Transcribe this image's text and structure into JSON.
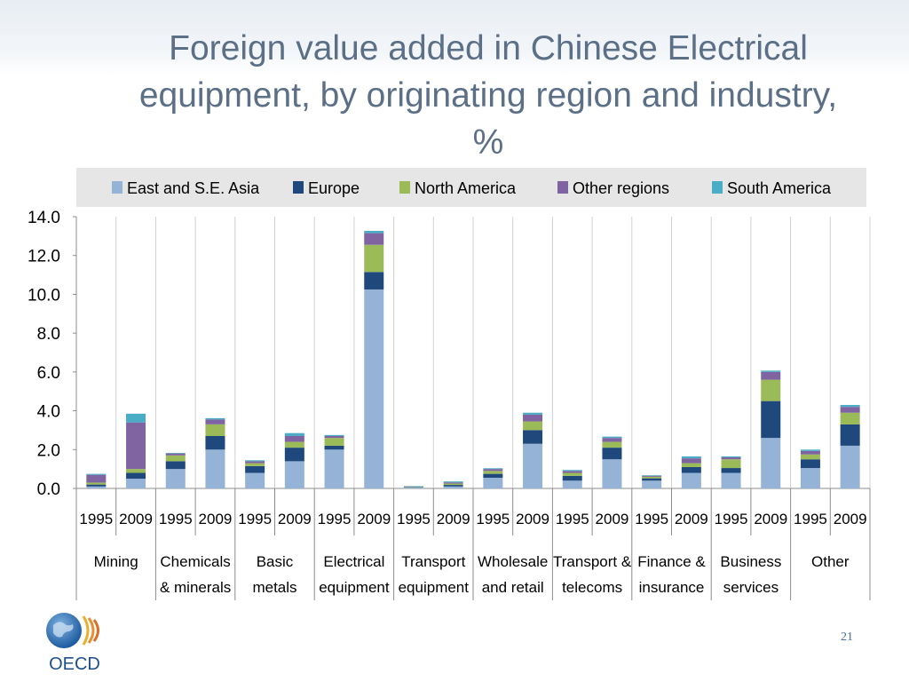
{
  "slide": {
    "title_lines": [
      "Foreign value added in Chinese Electrical",
      "equipment, by originating region and industry,",
      "%"
    ],
    "page_number": "21",
    "logo_text": "OECD"
  },
  "colors": {
    "East and S.E. Asia": "#95b3d7",
    "Europe": "#1f497d",
    "North America": "#9bbb59",
    "Other regions": "#8064a2",
    "South America": "#4bacc6"
  },
  "chart_data": {
    "type": "bar",
    "stacked": true,
    "title": "Foreign value added in Chinese Electrical equipment, by originating region and industry, %",
    "ylim": [
      0,
      14
    ],
    "yticks": [
      "0.0",
      "2.0",
      "4.0",
      "6.0",
      "8.0",
      "10.0",
      "12.0",
      "14.0"
    ],
    "grid": "vertical",
    "legend_position": "top",
    "industries": [
      {
        "lines": [
          "Mining"
        ]
      },
      {
        "lines": [
          "Chemicals",
          "& minerals"
        ]
      },
      {
        "lines": [
          "Basic",
          "metals"
        ]
      },
      {
        "lines": [
          "Electrical",
          "equipment"
        ]
      },
      {
        "lines": [
          "Transport",
          "equipment"
        ]
      },
      {
        "lines": [
          "Wholesale",
          "and retail"
        ]
      },
      {
        "lines": [
          "Transport &",
          "telecoms"
        ]
      },
      {
        "lines": [
          "Finance &",
          "insurance"
        ]
      },
      {
        "lines": [
          "Business",
          "services"
        ]
      },
      {
        "lines": [
          "Other"
        ]
      }
    ],
    "years": [
      "1995",
      "2009"
    ],
    "series": [
      {
        "name": "East and S.E. Asia",
        "values": [
          0.1,
          0.5,
          1.0,
          2.0,
          0.8,
          1.4,
          2.0,
          10.25,
          0.05,
          0.1,
          0.55,
          2.3,
          0.4,
          1.5,
          0.4,
          0.8,
          0.8,
          2.6,
          1.05,
          2.2
        ]
      },
      {
        "name": "Europe",
        "values": [
          0.1,
          0.3,
          0.4,
          0.7,
          0.35,
          0.7,
          0.2,
          0.9,
          0.02,
          0.08,
          0.2,
          0.7,
          0.25,
          0.6,
          0.12,
          0.3,
          0.25,
          1.9,
          0.45,
          1.1
        ]
      },
      {
        "name": "North America",
        "values": [
          0.1,
          0.2,
          0.3,
          0.6,
          0.15,
          0.3,
          0.4,
          1.4,
          0.02,
          0.07,
          0.15,
          0.45,
          0.15,
          0.3,
          0.08,
          0.2,
          0.45,
          1.1,
          0.25,
          0.6
        ]
      },
      {
        "name": "Other regions",
        "values": [
          0.4,
          2.4,
          0.1,
          0.25,
          0.1,
          0.3,
          0.1,
          0.6,
          0.01,
          0.06,
          0.1,
          0.35,
          0.1,
          0.2,
          0.05,
          0.25,
          0.1,
          0.4,
          0.18,
          0.3
        ]
      },
      {
        "name": "South America",
        "values": [
          0.05,
          0.45,
          0.03,
          0.07,
          0.05,
          0.15,
          0.05,
          0.12,
          0.02,
          0.05,
          0.04,
          0.1,
          0.05,
          0.07,
          0.03,
          0.1,
          0.05,
          0.07,
          0.07,
          0.1
        ]
      }
    ]
  }
}
